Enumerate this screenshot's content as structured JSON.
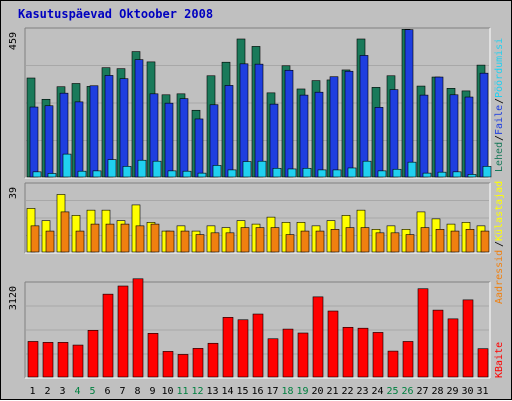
{
  "chart_data": {
    "type": "bar",
    "title": "Kasutuspäevad Oktoober 2008",
    "categories": [
      "1",
      "2",
      "3",
      "4",
      "5",
      "6",
      "7",
      "8",
      "9",
      "10",
      "11",
      "12",
      "13",
      "14",
      "15",
      "16",
      "17",
      "18",
      "19",
      "20",
      "21",
      "22",
      "23",
      "24",
      "25",
      "26",
      "27",
      "28",
      "29",
      "30",
      "31"
    ],
    "weekend_days": [
      "4",
      "5",
      "11",
      "12",
      "18",
      "19",
      "25",
      "26"
    ],
    "panels": [
      {
        "id": "top",
        "ymax_label": "459",
        "ylim": [
          0,
          459
        ],
        "series": [
          {
            "name": "Lehed",
            "color": "#1a7a5a",
            "values": [
              307,
              241,
              280,
              290,
              281,
              339,
              336,
              389,
              357,
              255,
              258,
              207,
              314,
              356,
              428,
              405,
              261,
              345,
              273,
              299,
              301,
              332,
              428,
              278,
              314,
              458,
              282,
              310,
              275,
              267,
              347
            ]
          },
          {
            "name": "Faile",
            "color": "#1e3ee0",
            "values": [
              217,
              221,
              260,
              233,
              283,
              315,
              305,
              364,
              258,
              229,
              243,
              180,
              224,
              284,
              351,
              350,
              226,
              331,
              254,
              263,
              311,
              328,
              377,
              216,
              271,
              457,
              254,
              310,
              255,
              248,
              322
            ]
          },
          {
            "name": "Pöördumisi",
            "color": "#20d0f0",
            "values": [
              16,
              11,
              71,
              18,
              19,
              54,
              33,
              52,
              49,
              19,
              18,
              12,
              36,
              22,
              48,
              49,
              27,
              25,
              27,
              22,
              22,
              28,
              49,
              19,
              24,
              46,
              12,
              15,
              16,
              8,
              33
            ]
          }
        ]
      },
      {
        "id": "middle",
        "ymax_label": "39",
        "ylim": [
          0,
          39
        ],
        "series": [
          {
            "name": "Külastajad",
            "color": "#ffff00",
            "values": [
              25,
              18,
              33,
              21,
              24,
              24,
              18,
              27,
              17,
              12,
              15,
              12,
              15,
              14,
              18,
              16,
              20,
              17,
              17,
              15,
              18,
              21,
              24,
              13,
              15,
              13,
              23,
              19,
              16,
              17,
              15
            ]
          },
          {
            "name": "Aadressid",
            "color": "#f08010",
            "values": [
              15,
              12,
              23,
              12,
              16,
              16,
              16,
              15,
              16,
              12,
              12,
              10,
              11,
              11,
              14,
              14,
              14,
              10,
              12,
              12,
              13,
              14,
              14,
              11,
              11,
              10,
              14,
              13,
              12,
              13,
              12
            ]
          }
        ]
      },
      {
        "id": "bottom",
        "ymax_label": "3120",
        "ylim": [
          0,
          3120
        ],
        "series": [
          {
            "name": "KBaite",
            "color": "#ff0000",
            "values": [
              1180,
              1150,
              1150,
              1060,
              1550,
              2750,
              3020,
              3260,
              1450,
              850,
              750,
              950,
              1120,
              1980,
              1900,
              2090,
              1270,
              1590,
              1460,
              2660,
              2190,
              1650,
              1620,
              1480,
              860,
              1180,
              2930,
              2220,
              1930,
              2560,
              940
            ]
          }
        ]
      }
    ],
    "right_labels": [
      {
        "text": "Pöördumisi",
        "color": "#20d0f0"
      },
      {
        "text": "Faile",
        "color": "#1e3ee0"
      },
      {
        "text": "Lehed",
        "color": "#1a7a5a"
      },
      {
        "text": "Külastajad",
        "color": "#ffff00"
      },
      {
        "text": "Aadressid",
        "color": "#f08010"
      },
      {
        "text": "KBaite",
        "color": "#ff0000"
      }
    ],
    "separator_color": "#000000",
    "grid": true,
    "title_color": "#0000c0",
    "axis_label_color": "#000000",
    "weekend_label_color": "#008040"
  }
}
